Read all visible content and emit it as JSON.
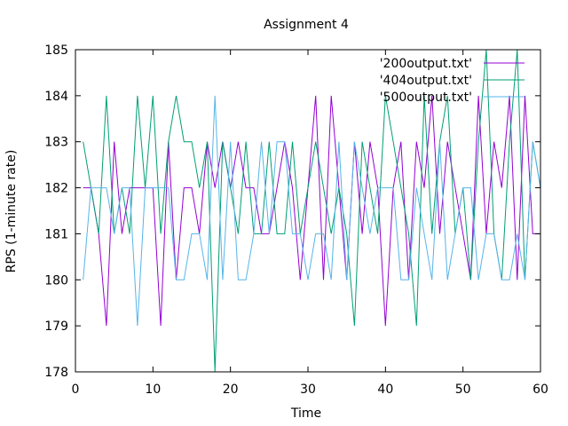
{
  "chart_data": {
    "type": "line",
    "title": "Assignment 4",
    "xlabel": "Time",
    "ylabel": "RPS (1-minute rate)",
    "xlim": [
      0,
      60
    ],
    "ylim": [
      178,
      185
    ],
    "xticks": [
      0,
      10,
      20,
      30,
      40,
      50,
      60
    ],
    "yticks": [
      178,
      179,
      180,
      181,
      182,
      183,
      184,
      185
    ],
    "grid": false,
    "legend_position": "top-right",
    "series": [
      {
        "name": "'200output.txt'",
        "color": "#9400d3",
        "x": [
          1,
          2,
          3,
          4,
          5,
          6,
          7,
          8,
          9,
          10,
          11,
          12,
          13,
          14,
          15,
          16,
          17,
          18,
          19,
          20,
          21,
          22,
          23,
          24,
          25,
          26,
          27,
          28,
          29,
          30,
          31,
          32,
          33,
          34,
          35,
          36,
          37,
          38,
          39,
          40,
          41,
          42,
          43,
          44,
          45,
          46,
          47,
          48,
          49,
          50,
          51,
          52,
          53,
          54,
          55,
          56,
          57,
          58,
          59,
          60
        ],
        "values": [
          182,
          182,
          181,
          179,
          183,
          181,
          182,
          182,
          182,
          182,
          179,
          183,
          180,
          182,
          182,
          181,
          183,
          182,
          183,
          182,
          183,
          182,
          182,
          181,
          181,
          182,
          183,
          182,
          180,
          182,
          184,
          180,
          184,
          182,
          180,
          183,
          181,
          183,
          182,
          179,
          182,
          183,
          180,
          183,
          182,
          184,
          181,
          183,
          182,
          181,
          180,
          184,
          181,
          183,
          182,
          184,
          180,
          184,
          181,
          181
        ]
      },
      {
        "name": "'404output.txt'",
        "color": "#009e73",
        "x": [
          1,
          2,
          3,
          4,
          5,
          6,
          7,
          8,
          9,
          10,
          11,
          12,
          13,
          14,
          15,
          16,
          17,
          18,
          19,
          20,
          21,
          22,
          23,
          24,
          25,
          26,
          27,
          28,
          29,
          30,
          31,
          32,
          33,
          34,
          35,
          36,
          37,
          38,
          39,
          40,
          41,
          42,
          43,
          44,
          45,
          46,
          47,
          48,
          49,
          50,
          51,
          52,
          53,
          54,
          55,
          56,
          57,
          58,
          59,
          60
        ],
        "values": [
          183,
          182,
          181,
          184,
          181,
          182,
          181,
          184,
          182,
          184,
          181,
          183,
          184,
          183,
          183,
          182,
          183,
          178,
          183,
          182,
          181,
          183,
          181,
          181,
          183,
          181,
          181,
          183,
          181,
          182,
          183,
          182,
          181,
          182,
          181,
          179,
          183,
          182,
          181,
          184,
          183,
          182,
          181,
          179,
          184,
          181,
          183,
          184,
          181,
          182,
          180,
          183,
          185,
          181,
          180,
          183,
          185,
          180,
          183,
          182
        ]
      },
      {
        "name": "'500output.txt'",
        "color": "#56b4e9",
        "x": [
          1,
          2,
          3,
          4,
          5,
          6,
          7,
          8,
          9,
          10,
          11,
          12,
          13,
          14,
          15,
          16,
          17,
          18,
          19,
          20,
          21,
          22,
          23,
          24,
          25,
          26,
          27,
          28,
          29,
          30,
          31,
          32,
          33,
          34,
          35,
          36,
          37,
          38,
          39,
          40,
          41,
          42,
          43,
          44,
          45,
          46,
          47,
          48,
          49,
          50,
          51,
          52,
          53,
          54,
          55,
          56,
          57,
          58,
          59,
          60
        ],
        "values": [
          180,
          182,
          182,
          182,
          181,
          182,
          182,
          179,
          182,
          182,
          182,
          182,
          180,
          180,
          181,
          181,
          180,
          184,
          180,
          183,
          180,
          180,
          181,
          183,
          181,
          183,
          183,
          181,
          181,
          180,
          181,
          181,
          180,
          183,
          180,
          183,
          182,
          181,
          182,
          182,
          182,
          180,
          180,
          182,
          181,
          180,
          183,
          180,
          181,
          182,
          182,
          180,
          181,
          181,
          180,
          180,
          181,
          180,
          183,
          182
        ]
      }
    ]
  }
}
